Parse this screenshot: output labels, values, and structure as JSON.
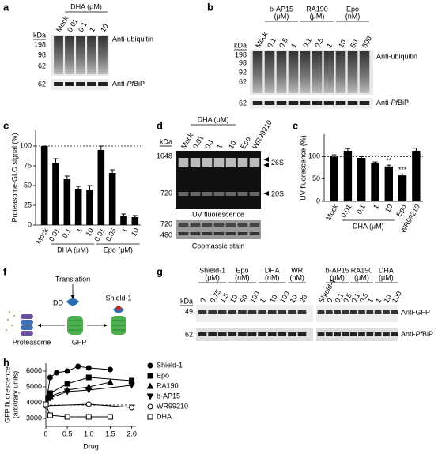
{
  "panels": {
    "a": {
      "letter": "a",
      "group": "DHA (μM)",
      "lanes": [
        "Mock",
        "0.01",
        "0.1",
        "1",
        "10"
      ],
      "kda": "kDa",
      "markers": [
        "198",
        "98",
        "62"
      ],
      "loading_marker": "62",
      "blot": "Anti-ubiquitin",
      "loading": [
        "Anti-",
        "Pf",
        "BiP"
      ]
    },
    "b": {
      "letter": "b",
      "lanes": [
        "Mock"
      ],
      "groups": [
        {
          "label": [
            "b-AP15",
            "(μM)"
          ],
          "lanes": [
            "0.1",
            "0.5",
            "1"
          ]
        },
        {
          "label": [
            "RA190",
            "(μM)"
          ],
          "lanes": [
            "0.1",
            "0.5",
            "1"
          ]
        },
        {
          "label": [
            "Epo",
            "(nM)"
          ],
          "lanes": [
            "10",
            "50",
            "500"
          ]
        }
      ],
      "kda": "kDa",
      "markers": [
        "198",
        "98",
        "92",
        "62"
      ],
      "loading_marker": "62",
      "blot": "Anti-ubiquitin",
      "loading": [
        "Anti-",
        "Pf",
        "BiP"
      ]
    },
    "d": {
      "letter": "d",
      "group": "DHA (μM)",
      "lanes": [
        "Mock",
        "0.01",
        "0.1",
        "1",
        "10",
        "Epo",
        "WR99210"
      ],
      "kda": "kDa",
      "markers": [
        "1048",
        "720"
      ],
      "stain_markers": [
        "720",
        "480"
      ],
      "bands": [
        "26S",
        "20S"
      ],
      "uv": "UV fluorescence",
      "stain": "Coomassie stain"
    },
    "f": {
      "letter": "f",
      "translation": "Translation",
      "dd": "DD",
      "shield": "Shield-1",
      "proteasome": "Proteasome",
      "gfp": "GFP"
    },
    "g": {
      "letter": "g",
      "kda": "kDa",
      "markers": [
        "49"
      ],
      "loading_marker": "62",
      "groups": [
        {
          "label": [
            "Shield-1",
            "(μM)"
          ],
          "lanes": [
            "0",
            "0.75",
            "1.5"
          ]
        },
        {
          "label": [
            "Epo",
            "(nM)"
          ],
          "lanes": [
            "10",
            "50",
            "100"
          ]
        },
        {
          "label": [
            "DHA",
            "(nM)"
          ],
          "lanes": [
            "1",
            "10",
            "100"
          ]
        },
        {
          "label": [
            "WR",
            "(nM)"
          ],
          "lanes": [
            "10",
            "20"
          ]
        }
      ],
      "right_lanes": [
        "Shield-1"
      ],
      "right_groups": [
        {
          "label": [
            "b-AP15",
            "(μM)"
          ],
          "lanes": [
            "0",
            "0.1",
            "0.5"
          ]
        },
        {
          "label": [
            "RA190",
            "(μM)"
          ],
          "lanes": [
            "0.1",
            "0.5",
            "1"
          ]
        },
        {
          "label": [
            "DHA",
            "(μM)"
          ],
          "lanes": [
            "1",
            "10",
            "100"
          ]
        }
      ],
      "blot": "Anti-GFP",
      "loading": [
        "Anti-",
        "Pf",
        "BiP"
      ]
    }
  },
  "chart_data": [
    {
      "type": "bar",
      "panel": "c",
      "ylabel": "Proteasome-GLO signal (%)",
      "categories": [
        "Mock",
        "0.01",
        "0.1",
        "1",
        "10",
        "0.01",
        "0.05",
        "1",
        "10"
      ],
      "values": [
        100,
        79,
        58,
        45,
        44,
        95,
        66,
        12,
        10
      ],
      "errors": [
        0,
        5,
        4,
        4,
        6,
        5,
        4,
        2,
        2
      ],
      "groups": [
        "DHA (μM)",
        "Epo (μM)"
      ],
      "color": "#000000",
      "reference_line": 100,
      "ylim": [
        0,
        120
      ],
      "yticks": [
        0,
        25,
        50,
        75,
        100
      ]
    },
    {
      "type": "bar",
      "panel": "e",
      "ylabel": "UV fluorescence (%)",
      "categories": [
        "Mock",
        "0.01",
        "0.1",
        "1",
        "10",
        "Epo",
        "WR99210"
      ],
      "values": [
        100,
        113,
        97,
        85,
        78,
        58,
        113
      ],
      "errors": [
        4,
        5,
        3,
        3,
        3,
        3,
        6
      ],
      "value_annotations": [
        null,
        null,
        null,
        null,
        "**",
        "***",
        null
      ],
      "groups": [
        "DHA (μM)"
      ],
      "color": "#000000",
      "reference_line": 100,
      "ylim": [
        0,
        150
      ],
      "yticks": [
        0,
        50,
        100
      ]
    },
    {
      "type": "scatter",
      "panel": "h",
      "ylabel": [
        "GFP fluorescence",
        "(arbitrary units)"
      ],
      "xlabel": "Drug",
      "reference_line": 3850,
      "xlim": [
        0,
        2.1
      ],
      "xticks": [
        0,
        0.5,
        {
          "value": 1,
          "label": "1.0"
        },
        1.5,
        {
          "value": 2,
          "label": "2.0"
        }
      ],
      "ylim": [
        2500,
        6500
      ],
      "yticks": [
        3000,
        4000,
        5000,
        6000
      ],
      "series": [
        {
          "name": "Shield-1",
          "marker": "circle",
          "color": "#000000",
          "x": [
            0,
            0.1,
            0.25,
            0.5,
            0.75,
            1,
            1.5
          ],
          "values": [
            3900,
            5600,
            5900,
            6000,
            6300,
            6200,
            6100
          ]
        },
        {
          "name": "Epo",
          "marker": "square",
          "color": "#000000",
          "x": [
            0,
            0.05,
            0.1,
            0.5,
            1,
            2
          ],
          "values": [
            3900,
            4300,
            4600,
            5200,
            5600,
            5400
          ]
        },
        {
          "name": "RA190",
          "marker": "triangle-up",
          "color": "#000000",
          "x": [
            0,
            0.1,
            0.5,
            1,
            1.5
          ],
          "values": [
            3900,
            4400,
            4800,
            5000,
            5300
          ]
        },
        {
          "name": "b-AP15",
          "marker": "triangle-down",
          "color": "#000000",
          "x": [
            0,
            0.1,
            0.5,
            1,
            2
          ],
          "values": [
            3800,
            4300,
            4700,
            4800,
            5100
          ]
        },
        {
          "name": "WR99210",
          "marker": "circle-open",
          "color": "#000000",
          "x": [
            0,
            1,
            2
          ],
          "values": [
            3800,
            3900,
            3700
          ]
        },
        {
          "name": "DHA",
          "marker": "square-open",
          "color": "#000000",
          "x": [
            0,
            0.1,
            0.5,
            1,
            1.5
          ],
          "values": [
            3900,
            3200,
            3100,
            3100,
            3100
          ]
        }
      ]
    }
  ]
}
